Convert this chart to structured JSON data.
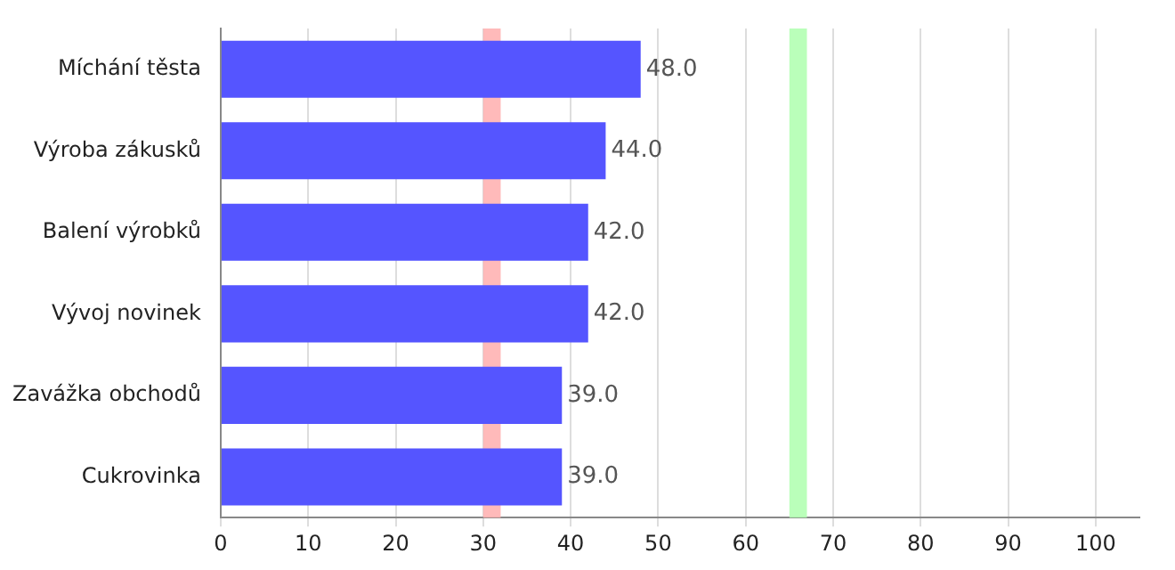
{
  "chart_data": {
    "type": "bar",
    "orientation": "horizontal",
    "categories": [
      "Míchání těsta",
      "Výroba zákusků",
      "Balení výrobků",
      "Vývoj novinek",
      "Zavážka obchodů",
      "Cukrovinka"
    ],
    "values": [
      48,
      44,
      42,
      42,
      39,
      39
    ],
    "color": "#5555ff",
    "value_labels": [
      "48.0",
      "44.0",
      "42.0",
      "42.0",
      "39.0",
      "39.0"
    ],
    "xlim": [
      0,
      105
    ],
    "xticks": [
      0,
      10,
      20,
      30,
      40,
      50,
      60,
      70,
      80,
      90,
      100
    ],
    "bands": [
      {
        "axis": "x",
        "from": 30,
        "to": 32,
        "color": "#ffb3b3"
      },
      {
        "axis": "x",
        "from": 65,
        "to": 67,
        "color": "#b3ffb3"
      }
    ],
    "grid": "x",
    "legend": false
  }
}
